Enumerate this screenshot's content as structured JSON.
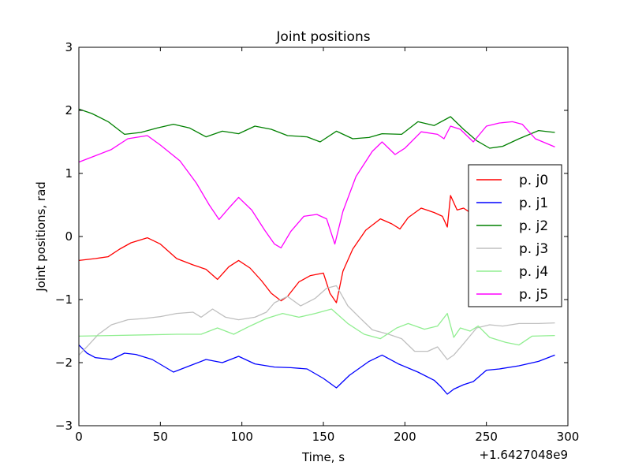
{
  "chart_data": {
    "type": "line",
    "title": "Joint positions",
    "xlabel": "Time, s",
    "ylabel": "Joint positions, rad",
    "x_offset_label": "+1.6427048e9",
    "xlim": [
      0,
      300
    ],
    "ylim": [
      -3,
      3
    ],
    "x_ticks": [
      0,
      50,
      100,
      150,
      200,
      250,
      300
    ],
    "y_ticks": [
      -3,
      -2,
      -1,
      0,
      1,
      2,
      3
    ],
    "x_tick_labels": [
      "0",
      "50",
      "100",
      "150",
      "200",
      "250",
      "300"
    ],
    "y_tick_labels": [
      "−3",
      "−2",
      "−1",
      "0",
      "1",
      "2",
      "3"
    ],
    "grid": false,
    "legend_position": "center-right",
    "series": [
      {
        "name": "p. j0",
        "color": "#ff0000",
        "points": [
          [
            0,
            -0.38
          ],
          [
            10,
            -0.35
          ],
          [
            18,
            -0.32
          ],
          [
            25,
            -0.2
          ],
          [
            32,
            -0.1
          ],
          [
            42,
            -0.02
          ],
          [
            50,
            -0.12
          ],
          [
            60,
            -0.35
          ],
          [
            70,
            -0.45
          ],
          [
            78,
            -0.52
          ],
          [
            85,
            -0.68
          ],
          [
            92,
            -0.48
          ],
          [
            98,
            -0.38
          ],
          [
            105,
            -0.5
          ],
          [
            112,
            -0.7
          ],
          [
            118,
            -0.9
          ],
          [
            124,
            -1.02
          ],
          [
            128,
            -0.95
          ],
          [
            135,
            -0.72
          ],
          [
            142,
            -0.62
          ],
          [
            150,
            -0.58
          ],
          [
            154,
            -0.9
          ],
          [
            158,
            -1.05
          ],
          [
            162,
            -0.55
          ],
          [
            168,
            -0.2
          ],
          [
            176,
            0.1
          ],
          [
            185,
            0.28
          ],
          [
            192,
            0.2
          ],
          [
            197,
            0.12
          ],
          [
            202,
            0.3
          ],
          [
            210,
            0.45
          ],
          [
            218,
            0.38
          ],
          [
            223,
            0.32
          ],
          [
            226,
            0.15
          ],
          [
            228,
            0.65
          ],
          [
            232,
            0.42
          ],
          [
            236,
            0.45
          ],
          [
            240,
            0.38
          ]
        ]
      },
      {
        "name": "p. j1",
        "color": "#0000ff",
        "points": [
          [
            0,
            -1.72
          ],
          [
            5,
            -1.85
          ],
          [
            10,
            -1.92
          ],
          [
            20,
            -1.95
          ],
          [
            28,
            -1.85
          ],
          [
            35,
            -1.87
          ],
          [
            45,
            -1.95
          ],
          [
            58,
            -2.15
          ],
          [
            68,
            -2.05
          ],
          [
            78,
            -1.95
          ],
          [
            88,
            -2.0
          ],
          [
            98,
            -1.9
          ],
          [
            108,
            -2.02
          ],
          [
            120,
            -2.07
          ],
          [
            130,
            -2.08
          ],
          [
            140,
            -2.1
          ],
          [
            150,
            -2.25
          ],
          [
            158,
            -2.4
          ],
          [
            166,
            -2.2
          ],
          [
            178,
            -1.98
          ],
          [
            186,
            -1.88
          ],
          [
            196,
            -2.02
          ],
          [
            208,
            -2.15
          ],
          [
            218,
            -2.28
          ],
          [
            222,
            -2.38
          ],
          [
            226,
            -2.5
          ],
          [
            230,
            -2.42
          ],
          [
            236,
            -2.35
          ],
          [
            242,
            -2.3
          ],
          [
            250,
            -2.12
          ],
          [
            258,
            -2.1
          ],
          [
            270,
            -2.05
          ],
          [
            282,
            -1.98
          ],
          [
            292,
            -1.88
          ]
        ]
      },
      {
        "name": "p. j2",
        "color": "#008000",
        "points": [
          [
            0,
            2.02
          ],
          [
            8,
            1.95
          ],
          [
            18,
            1.82
          ],
          [
            28,
            1.62
          ],
          [
            38,
            1.65
          ],
          [
            48,
            1.72
          ],
          [
            58,
            1.78
          ],
          [
            68,
            1.72
          ],
          [
            78,
            1.58
          ],
          [
            88,
            1.67
          ],
          [
            98,
            1.63
          ],
          [
            108,
            1.75
          ],
          [
            118,
            1.7
          ],
          [
            128,
            1.6
          ],
          [
            140,
            1.58
          ],
          [
            148,
            1.5
          ],
          [
            158,
            1.67
          ],
          [
            168,
            1.55
          ],
          [
            178,
            1.57
          ],
          [
            186,
            1.63
          ],
          [
            198,
            1.62
          ],
          [
            208,
            1.82
          ],
          [
            218,
            1.76
          ],
          [
            228,
            1.9
          ],
          [
            236,
            1.7
          ],
          [
            244,
            1.52
          ],
          [
            252,
            1.4
          ],
          [
            260,
            1.43
          ],
          [
            270,
            1.55
          ],
          [
            282,
            1.68
          ],
          [
            292,
            1.65
          ]
        ]
      },
      {
        "name": "p. j3",
        "color": "#bfbfbf",
        "points": [
          [
            0,
            -1.88
          ],
          [
            6,
            -1.72
          ],
          [
            12,
            -1.55
          ],
          [
            20,
            -1.4
          ],
          [
            30,
            -1.32
          ],
          [
            40,
            -1.3
          ],
          [
            50,
            -1.27
          ],
          [
            60,
            -1.22
          ],
          [
            70,
            -1.2
          ],
          [
            75,
            -1.28
          ],
          [
            82,
            -1.15
          ],
          [
            90,
            -1.28
          ],
          [
            98,
            -1.32
          ],
          [
            108,
            -1.28
          ],
          [
            115,
            -1.2
          ],
          [
            120,
            -1.05
          ],
          [
            128,
            -0.95
          ],
          [
            136,
            -1.1
          ],
          [
            145,
            -0.98
          ],
          [
            152,
            -0.82
          ],
          [
            158,
            -0.78
          ],
          [
            165,
            -1.1
          ],
          [
            172,
            -1.28
          ],
          [
            180,
            -1.48
          ],
          [
            190,
            -1.55
          ],
          [
            198,
            -1.62
          ],
          [
            206,
            -1.82
          ],
          [
            214,
            -1.82
          ],
          [
            220,
            -1.75
          ],
          [
            226,
            -1.95
          ],
          [
            230,
            -1.88
          ],
          [
            236,
            -1.7
          ],
          [
            244,
            -1.45
          ],
          [
            252,
            -1.4
          ],
          [
            260,
            -1.42
          ],
          [
            270,
            -1.38
          ],
          [
            282,
            -1.38
          ],
          [
            292,
            -1.37
          ]
        ]
      },
      {
        "name": "p. j4",
        "color": "#90ee90",
        "points": [
          [
            0,
            -1.58
          ],
          [
            20,
            -1.57
          ],
          [
            40,
            -1.56
          ],
          [
            60,
            -1.55
          ],
          [
            75,
            -1.55
          ],
          [
            85,
            -1.45
          ],
          [
            95,
            -1.55
          ],
          [
            105,
            -1.42
          ],
          [
            115,
            -1.3
          ],
          [
            125,
            -1.22
          ],
          [
            135,
            -1.28
          ],
          [
            145,
            -1.22
          ],
          [
            155,
            -1.15
          ],
          [
            165,
            -1.38
          ],
          [
            175,
            -1.55
          ],
          [
            185,
            -1.62
          ],
          [
            195,
            -1.45
          ],
          [
            202,
            -1.38
          ],
          [
            212,
            -1.47
          ],
          [
            220,
            -1.42
          ],
          [
            226,
            -1.22
          ],
          [
            230,
            -1.6
          ],
          [
            234,
            -1.45
          ],
          [
            240,
            -1.5
          ],
          [
            245,
            -1.42
          ],
          [
            252,
            -1.6
          ],
          [
            262,
            -1.68
          ],
          [
            270,
            -1.72
          ],
          [
            278,
            -1.58
          ],
          [
            292,
            -1.57
          ]
        ]
      },
      {
        "name": "p. j5",
        "color": "#ff00ff",
        "points": [
          [
            0,
            1.18
          ],
          [
            10,
            1.28
          ],
          [
            20,
            1.38
          ],
          [
            30,
            1.55
          ],
          [
            42,
            1.6
          ],
          [
            50,
            1.45
          ],
          [
            62,
            1.2
          ],
          [
            72,
            0.85
          ],
          [
            80,
            0.5
          ],
          [
            86,
            0.27
          ],
          [
            92,
            0.45
          ],
          [
            98,
            0.62
          ],
          [
            106,
            0.42
          ],
          [
            114,
            0.1
          ],
          [
            120,
            -0.12
          ],
          [
            124,
            -0.18
          ],
          [
            130,
            0.08
          ],
          [
            138,
            0.32
          ],
          [
            146,
            0.35
          ],
          [
            152,
            0.28
          ],
          [
            157,
            -0.12
          ],
          [
            162,
            0.4
          ],
          [
            170,
            0.95
          ],
          [
            180,
            1.35
          ],
          [
            186,
            1.5
          ],
          [
            194,
            1.3
          ],
          [
            200,
            1.4
          ],
          [
            210,
            1.66
          ],
          [
            220,
            1.62
          ],
          [
            224,
            1.55
          ],
          [
            228,
            1.75
          ],
          [
            234,
            1.7
          ],
          [
            242,
            1.5
          ],
          [
            250,
            1.75
          ],
          [
            258,
            1.8
          ],
          [
            266,
            1.82
          ],
          [
            272,
            1.78
          ],
          [
            280,
            1.55
          ],
          [
            292,
            1.42
          ]
        ]
      }
    ]
  }
}
